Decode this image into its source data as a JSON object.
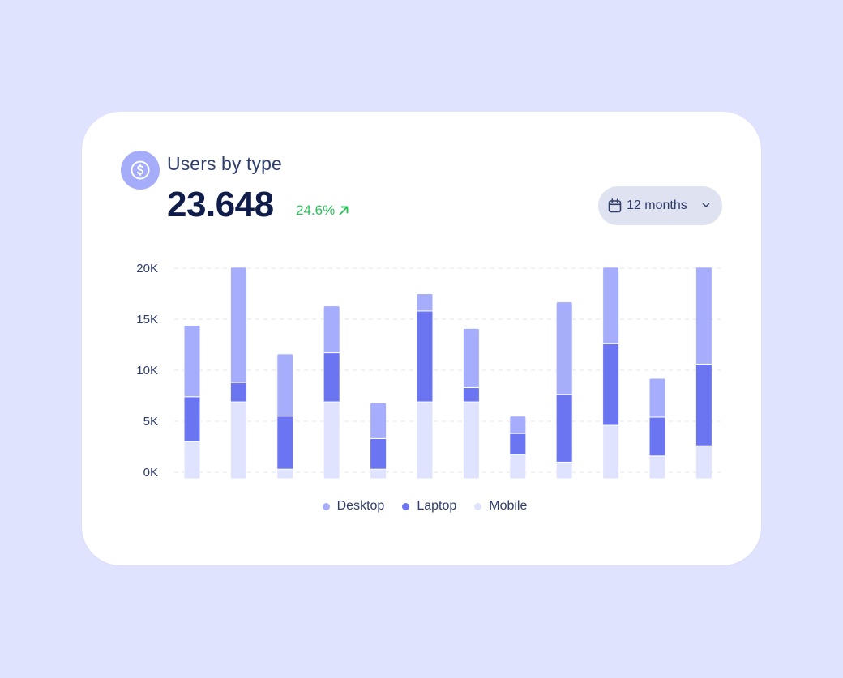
{
  "card": {
    "title": "Users by type",
    "total": "23.648",
    "change": "24.6%",
    "change_direction": "up",
    "icon": "dollar-icon",
    "change_icon": "arrow-up-right-icon"
  },
  "period_select": {
    "icon": "calendar-icon",
    "value": "12 months",
    "chevron_icon": "chevron-down-icon"
  },
  "colors": {
    "desktop": "#a6aefc",
    "laptop": "#6b75f1",
    "mobile": "#e0e3fe",
    "positive": "#2bc25a",
    "page_background": "#e0e3fe"
  },
  "chart_data": {
    "type": "bar",
    "stacked": true,
    "y_ticks": [
      "20K",
      "15K",
      "10K",
      "5K",
      "0K"
    ],
    "ylim": [
      0,
      20000
    ],
    "grid": true,
    "legend_position": "bottom",
    "series": [
      {
        "name": "Mobile",
        "color": "#e0e3fe",
        "values": [
          3000,
          6900,
          300,
          6900,
          300,
          6900,
          6900,
          1700,
          1000,
          4600,
          1600,
          2600
        ]
      },
      {
        "name": "Laptop",
        "color": "#6b75f1",
        "values": [
          4400,
          1900,
          5200,
          4800,
          3000,
          8900,
          1400,
          2100,
          6600,
          8000,
          3800,
          8000
        ]
      },
      {
        "name": "Desktop",
        "color": "#a6aefc",
        "values": [
          7000,
          11300,
          6100,
          4600,
          3500,
          1700,
          5800,
          1700,
          9100,
          7500,
          3800,
          9500
        ]
      }
    ],
    "legend": [
      {
        "label": "Desktop",
        "color": "#a6aefc"
      },
      {
        "label": "Laptop",
        "color": "#6b75f1"
      },
      {
        "label": "Mobile",
        "color": "#e0e3fe"
      }
    ]
  }
}
